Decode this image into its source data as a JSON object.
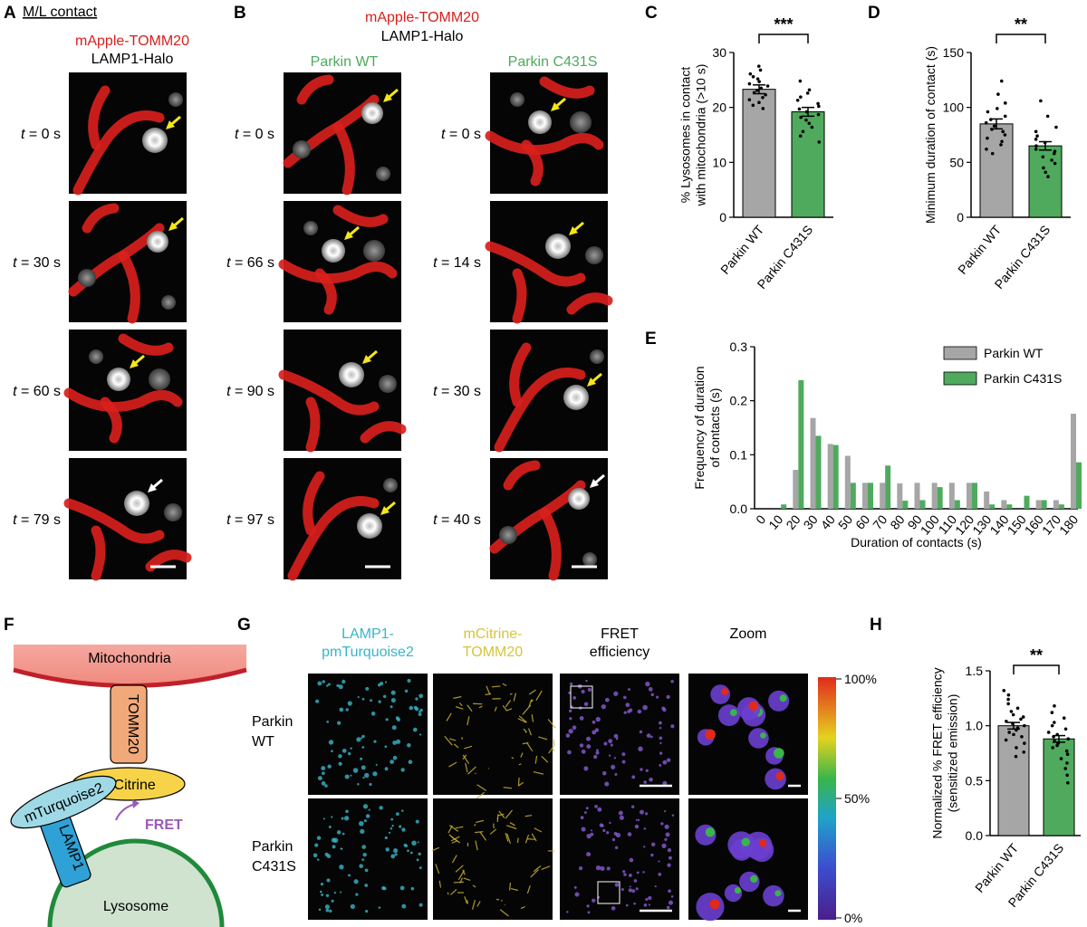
{
  "panels": {
    "A": {
      "label": "A",
      "header": "M/L contact",
      "stain_red": "mApple-TOMM20",
      "stain_gray": "LAMP1-Halo",
      "frames": [
        {
          "t": "0 s",
          "arrow": "yellow"
        },
        {
          "t": "30 s",
          "arrow": "yellow"
        },
        {
          "t": "60 s",
          "arrow": "yellow"
        },
        {
          "t": "79 s",
          "arrow": "white"
        }
      ]
    },
    "B": {
      "label": "B",
      "stain_red": "mApple-TOMM20",
      "stain_gray": "LAMP1-Halo",
      "columns": [
        {
          "name": "Parkin WT",
          "frames": [
            {
              "t": "0 s",
              "arrow": "yellow"
            },
            {
              "t": "66 s",
              "arrow": "yellow"
            },
            {
              "t": "90 s",
              "arrow": "yellow"
            },
            {
              "t": "97 s",
              "arrow": "yellow"
            }
          ]
        },
        {
          "name": "Parkin C431S",
          "frames": [
            {
              "t": "0 s",
              "arrow": "yellow"
            },
            {
              "t": "14 s",
              "arrow": "yellow"
            },
            {
              "t": "30 s",
              "arrow": "yellow"
            },
            {
              "t": "40 s",
              "arrow": "white"
            }
          ]
        }
      ]
    },
    "F": {
      "label": "F",
      "mitochondria": "Mitochondria",
      "tomm20": "TOMM20",
      "mcitrine": "mCitrine",
      "mturquoise": "mTurquoise2",
      "fret": "FRET",
      "lamp1": "LAMP1",
      "lysosome": "Lysosome"
    },
    "G": {
      "label": "G",
      "col_headers": [
        "LAMP1-\npmTurquoise2",
        "mCitrine-\nTOMM20",
        "FRET\nefficiency",
        "Zoom"
      ],
      "rows": [
        "Parkin\nWT",
        "Parkin\nC431S"
      ],
      "colorbar": [
        "100%",
        "50%",
        "0%"
      ]
    }
  },
  "colors": {
    "wt_bar": "#a6a6a6",
    "mut_bar": "#4faa5e",
    "mito_red": "#d8201c",
    "arrow_yellow": "#f5e61a",
    "cyan": "#3ab4c8",
    "yellow": "#d6c43a",
    "purple": "#9b59b6"
  },
  "chart_data": [
    {
      "panel": "C",
      "type": "bar",
      "categories": [
        "Parkin WT",
        "Parkin C431S"
      ],
      "values": [
        23.3,
        19.2
      ],
      "sem": [
        0.8,
        0.8
      ],
      "ylabel": "% Lysosomes in contact\nwith mitochondria (>10 s)",
      "ylim": [
        0,
        30
      ],
      "yticks": [
        0,
        10,
        20,
        30
      ],
      "significance": "***",
      "points": [
        [
          27.5,
          26.8,
          26.1,
          25.6,
          25.2,
          24.7,
          24.3,
          23.9,
          23.5,
          23.1,
          22.7,
          22.3,
          21.8,
          21.4,
          20.9,
          20.4,
          19.8
        ],
        [
          24.8,
          23.2,
          22.6,
          21.9,
          21.3,
          20.7,
          20.2,
          19.7,
          19.2,
          18.7,
          18.2,
          17.7,
          17.1,
          16.4,
          15.6,
          14.8,
          13.7
        ]
      ]
    },
    {
      "panel": "D",
      "type": "bar",
      "categories": [
        "Parkin WT",
        "Parkin C431S"
      ],
      "values": [
        85,
        65
      ],
      "sem": [
        4.5,
        3.8
      ],
      "ylabel": "Minimum duration of contact (s)",
      "ylim": [
        0,
        150
      ],
      "yticks": [
        0,
        50,
        100,
        150
      ],
      "significance": "**",
      "points": [
        [
          124,
          112,
          104,
          99,
          96,
          92,
          89,
          86,
          83,
          80,
          78,
          75,
          72,
          69,
          66,
          62,
          58
        ],
        [
          106,
          92,
          82,
          78,
          74,
          71,
          68,
          65,
          62,
          60,
          58,
          55,
          52,
          49,
          45,
          41,
          37
        ]
      ]
    },
    {
      "panel": "E",
      "type": "bar",
      "x": [
        "0",
        "10",
        "20",
        "30",
        "40",
        "50",
        "60",
        "70",
        "80",
        "90",
        "100",
        "110",
        "120",
        "130",
        "140",
        "150",
        "160",
        "170",
        "180"
      ],
      "series": [
        {
          "name": "Parkin WT",
          "values": [
            0,
            0,
            0.072,
            0.168,
            0.12,
            0.098,
            0.048,
            0.048,
            0.047,
            0.048,
            0.048,
            0.048,
            0.048,
            0.032,
            0.016,
            0,
            0.016,
            0.016,
            0.176
          ]
        },
        {
          "name": "Parkin C431S",
          "values": [
            0,
            0.008,
            0.238,
            0.135,
            0.118,
            0.048,
            0.048,
            0.08,
            0.015,
            0.016,
            0.04,
            0.016,
            0.048,
            0.008,
            0.008,
            0.024,
            0.016,
            0.008,
            0.086
          ]
        }
      ],
      "xlabel": "Duration of contacts (s)",
      "ylabel": "Frequency of duration\nof contacts (s)",
      "ylim": [
        0,
        0.3
      ],
      "yticks": [
        0.0,
        0.1,
        0.2,
        0.3
      ],
      "legend": "top-right"
    },
    {
      "panel": "H",
      "type": "bar",
      "categories": [
        "Parkin WT",
        "Parkin C431S"
      ],
      "values": [
        1.0,
        0.88
      ],
      "sem": [
        0.03,
        0.03
      ],
      "ylabel": "Normalized % FRET efficiency\n(sensitized emission)",
      "ylim": [
        0,
        1.5
      ],
      "yticks": [
        0.0,
        0.5,
        1.0,
        1.5
      ],
      "significance": "**",
      "points": [
        [
          1.32,
          1.28,
          1.24,
          1.2,
          1.16,
          1.13,
          1.1,
          1.08,
          1.06,
          1.04,
          1.02,
          1.0,
          0.98,
          0.96,
          0.94,
          0.92,
          0.9,
          0.87,
          0.84,
          0.8,
          0.76,
          0.72
        ],
        [
          1.18,
          1.12,
          1.07,
          1.03,
          1.0,
          0.97,
          0.94,
          0.92,
          0.9,
          0.88,
          0.86,
          0.84,
          0.82,
          0.8,
          0.77,
          0.74,
          0.7,
          0.66,
          0.61,
          0.55,
          0.48
        ]
      ]
    }
  ]
}
